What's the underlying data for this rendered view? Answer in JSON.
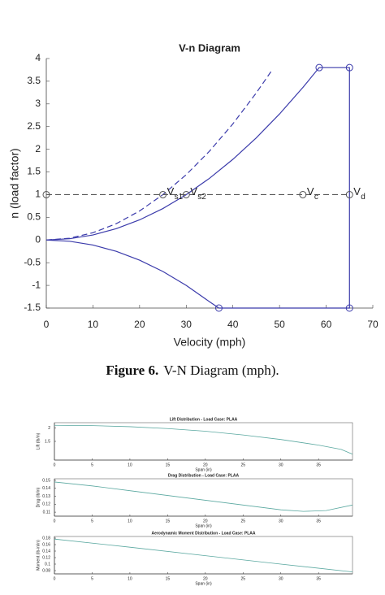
{
  "chart_data": [
    {
      "type": "line",
      "title": "V-n Diagram",
      "x_label": "Velocity (mph)",
      "y_label": "n (load factor)",
      "xlim": [
        0,
        70
      ],
      "xticks": [
        0,
        10,
        20,
        30,
        40,
        50,
        60,
        70
      ],
      "ylim": [
        -1.5,
        4
      ],
      "yticks": [
        -1.5,
        -1,
        -0.5,
        0,
        0.5,
        1,
        1.5,
        2,
        2.5,
        3,
        3.5,
        4
      ],
      "box": false,
      "series": [
        {
          "color": "#3b3bab",
          "line": "dashed",
          "marker": "none",
          "x": [
            0,
            5,
            10,
            15,
            20,
            25,
            30,
            35,
            40,
            45,
            48.5
          ],
          "values": [
            0,
            0.04,
            0.16,
            0.36,
            0.64,
            1,
            1.44,
            1.96,
            2.56,
            3.24,
            3.76
          ]
        },
        {
          "color": "#3b3bab",
          "line": "solid",
          "marker": "none",
          "x": [
            0,
            5,
            10,
            15,
            20,
            25,
            30,
            35,
            40,
            45,
            50,
            55,
            58.5,
            65,
            65,
            37,
            35,
            30,
            25,
            20,
            15,
            10,
            5,
            0
          ],
          "values": [
            0,
            0.028,
            0.111,
            0.25,
            0.444,
            0.694,
            1,
            1.361,
            1.778,
            2.25,
            2.778,
            3.361,
            3.8,
            3.8,
            -1.5,
            -1.5,
            -1.361,
            -1,
            -0.694,
            -0.444,
            -0.25,
            -0.111,
            -0.028,
            0
          ]
        },
        {
          "color": "#555555",
          "line": "dashed",
          "marker": "none",
          "x": [
            0,
            65
          ],
          "values": [
            1,
            1
          ]
        },
        {
          "color": "#3b3bab",
          "line": "none",
          "marker": "circle",
          "x": [
            58.5,
            65,
            65,
            37
          ],
          "values": [
            3.8,
            3.8,
            -1.5,
            -1.5
          ]
        },
        {
          "color": "#555555",
          "line": "none",
          "marker": "circle",
          "x": [
            0,
            25,
            30,
            55,
            65
          ],
          "values": [
            1,
            1,
            1,
            1,
            1
          ]
        }
      ],
      "annotations": [
        {
          "text": "V",
          "sub": "s1",
          "x": 25,
          "y": 1
        },
        {
          "text": "V",
          "sub": "s2",
          "x": 30,
          "y": 1
        },
        {
          "text": "V",
          "sub": "c",
          "x": 55,
          "y": 1
        },
        {
          "text": "V",
          "sub": "d",
          "x": 65,
          "y": 1
        }
      ]
    },
    {
      "type": "line",
      "title": "Lift Distribution - Load Case: PLAA",
      "x_label": "Span (in)",
      "y_label": "Lift (lb/in)",
      "xlim": [
        0,
        39.5
      ],
      "xticks": [
        0,
        5,
        10,
        15,
        20,
        25,
        30,
        35
      ],
      "ylim": [
        0.8,
        2.2
      ],
      "yticks": [
        1.5,
        2
      ],
      "box": true,
      "series": [
        {
          "color": "#5aa8a0",
          "line": "solid",
          "marker": "none",
          "x": [
            0,
            5,
            10,
            15,
            20,
            25,
            30,
            35,
            38,
            39.5
          ],
          "values": [
            2.1,
            2.09,
            2.05,
            1.98,
            1.88,
            1.74,
            1.57,
            1.36,
            1.2,
            1.02
          ]
        }
      ]
    },
    {
      "type": "line",
      "title": "Drag Distribution - Load Case: PLAA",
      "x_label": "Span (in)",
      "y_label": "Drag (lb/in)",
      "xlim": [
        0,
        39.5
      ],
      "xticks": [
        0,
        5,
        10,
        15,
        20,
        25,
        30,
        35
      ],
      "ylim": [
        0.105,
        0.152
      ],
      "yticks": [
        0.11,
        0.12,
        0.13,
        0.14,
        0.15
      ],
      "box": true,
      "series": [
        {
          "color": "#5aa8a0",
          "line": "solid",
          "marker": "none",
          "x": [
            0,
            5,
            10,
            15,
            20,
            25,
            30,
            33,
            36,
            39.5
          ],
          "values": [
            0.148,
            0.143,
            0.137,
            0.131,
            0.125,
            0.119,
            0.113,
            0.111,
            0.112,
            0.119
          ]
        }
      ]
    },
    {
      "type": "line",
      "title": "Aerodynamic Moment Distribution - Load Case: PLAA",
      "x_label": "Span (in)",
      "y_label": "Moment (lb-in/in)",
      "xlim": [
        0,
        39.5
      ],
      "xticks": [
        0,
        5,
        10,
        15,
        20,
        25,
        30,
        35
      ],
      "ylim": [
        0.07,
        0.185
      ],
      "yticks": [
        0.08,
        0.1,
        0.12,
        0.14,
        0.16,
        0.18
      ],
      "box": true,
      "series": [
        {
          "color": "#5aa8a0",
          "line": "solid",
          "marker": "none",
          "x": [
            0,
            10,
            20,
            30,
            39.5
          ],
          "values": [
            0.177,
            0.152,
            0.126,
            0.1,
            0.076
          ]
        }
      ]
    }
  ],
  "caption": {
    "label": "Figure 6.",
    "text": "V-N Diagram (mph)."
  }
}
